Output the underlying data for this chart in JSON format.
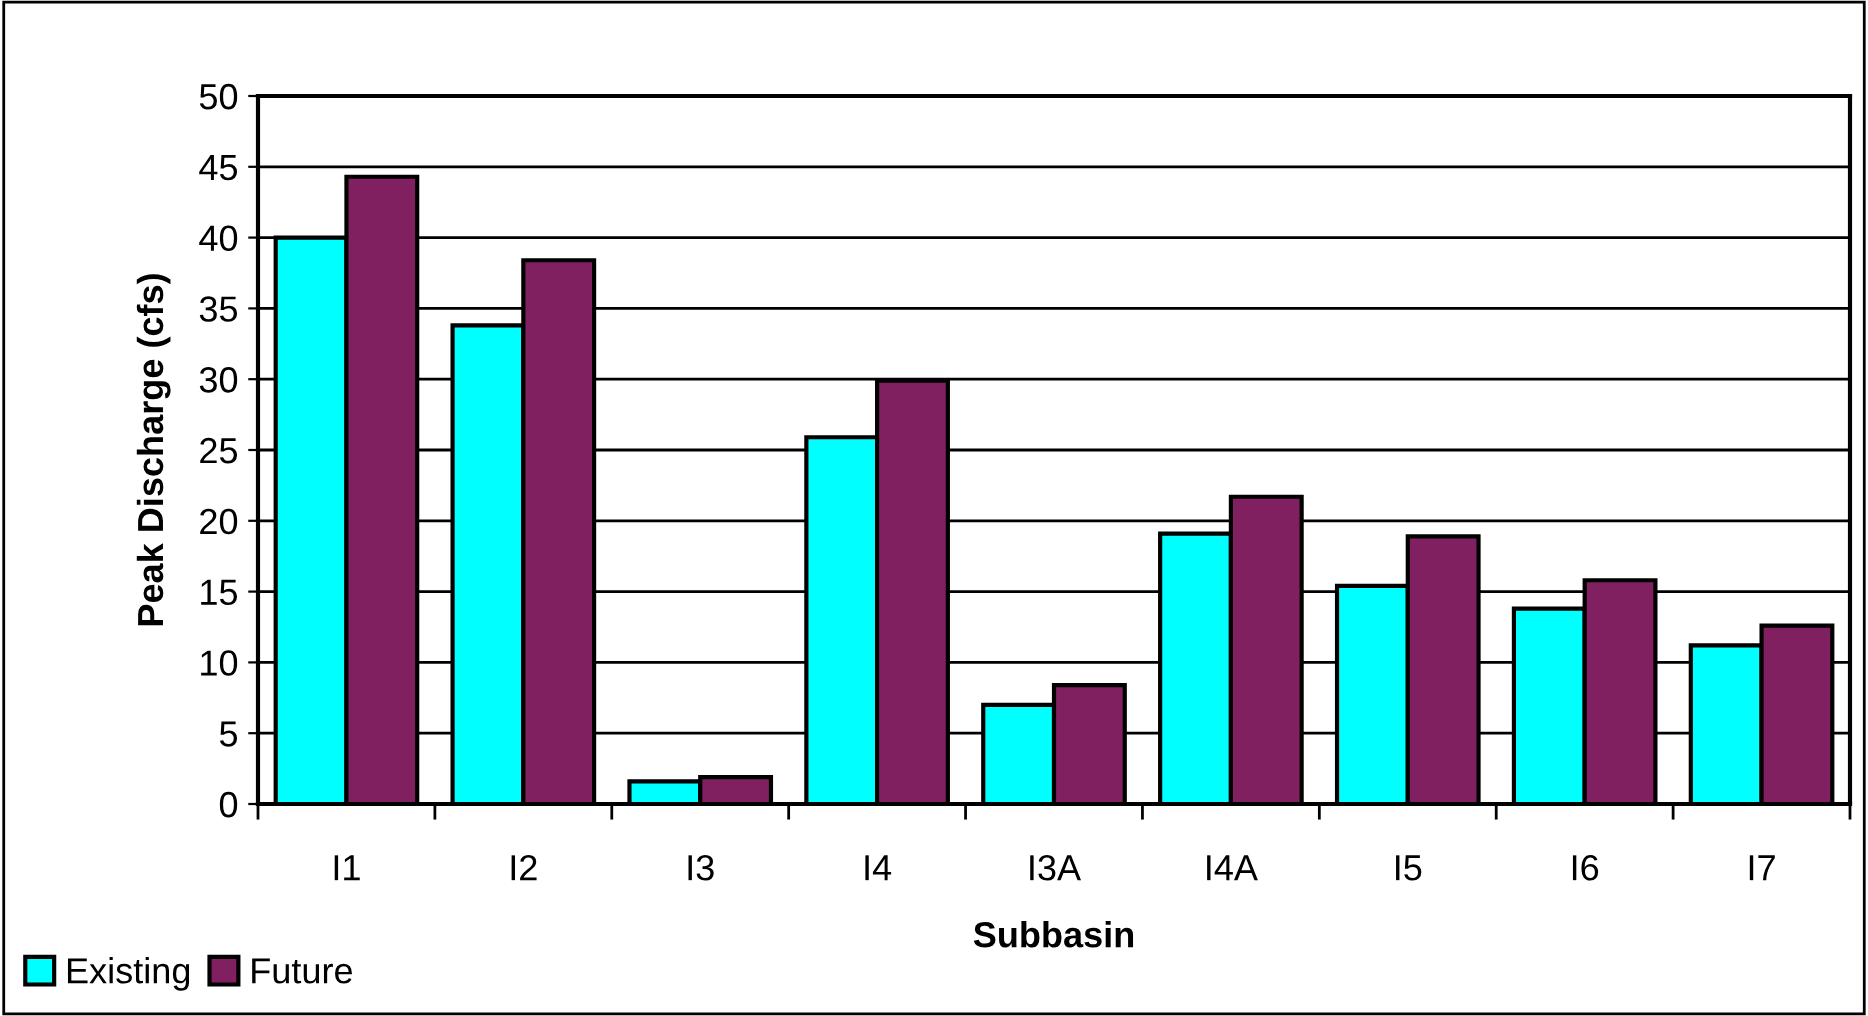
{
  "chart_data": {
    "type": "bar",
    "xlabel": "Subbasin",
    "ylabel": "Peak Discharge (cfs)",
    "categories": [
      "I1",
      "I2",
      "I3",
      "I4",
      "I3A",
      "I4A",
      "I5",
      "I6",
      "I7"
    ],
    "series": [
      {
        "name": "Existing",
        "color": "#00ffff",
        "values": [
          40.0,
          33.8,
          1.6,
          25.9,
          7.0,
          19.1,
          15.4,
          13.8,
          11.2
        ]
      },
      {
        "name": "Future",
        "color": "#812060",
        "values": [
          44.3,
          38.4,
          1.9,
          29.9,
          8.4,
          21.7,
          18.9,
          15.8,
          12.6
        ]
      }
    ],
    "ylim": [
      0,
      50
    ],
    "yticks": [
      0,
      5,
      10,
      15,
      20,
      25,
      30,
      35,
      40,
      45,
      50
    ],
    "grid": "y",
    "legend": "bottom left"
  }
}
